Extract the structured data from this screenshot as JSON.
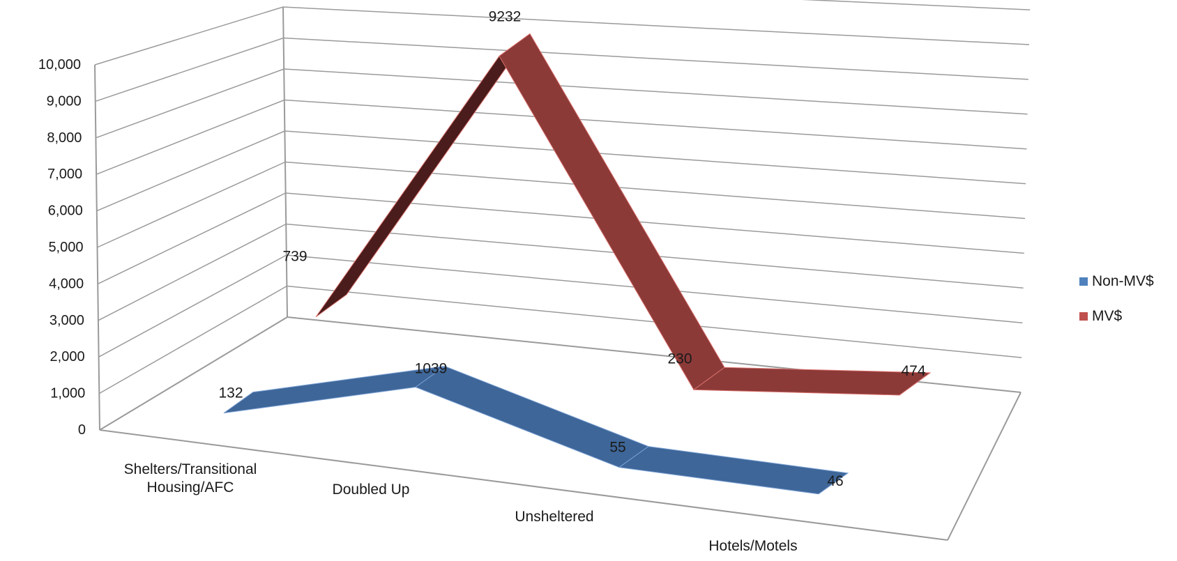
{
  "chart_data": {
    "type": "line",
    "subtype": "3d-ribbon",
    "categories": [
      "Shelters/Transitional Housing/AFC",
      "Doubled Up",
      "Unsheltered",
      "Hotels/Motels"
    ],
    "category_lines": [
      [
        "Shelters/Transitional",
        "Housing/AFC"
      ],
      [
        "Doubled Up"
      ],
      [
        "Unsheltered"
      ],
      [
        "Hotels/Motels"
      ]
    ],
    "series": [
      {
        "name": "Non-MV$",
        "values": [
          132,
          1039,
          55,
          46
        ],
        "labels": [
          "132",
          "1039",
          "55",
          "46"
        ],
        "color": "#4f81bd"
      },
      {
        "name": "MV$",
        "values": [
          739,
          9232,
          230,
          474
        ],
        "labels": [
          "739",
          "9232",
          "230",
          "474"
        ],
        "color": "#c0504d"
      }
    ],
    "y_ticks": [
      "0",
      "1,000",
      "2,000",
      "3,000",
      "4,000",
      "5,000",
      "6,000",
      "7,000",
      "8,000",
      "9,000",
      "10,000"
    ],
    "ylim": [
      0,
      10000
    ],
    "grid": true,
    "legend_position": "right"
  }
}
